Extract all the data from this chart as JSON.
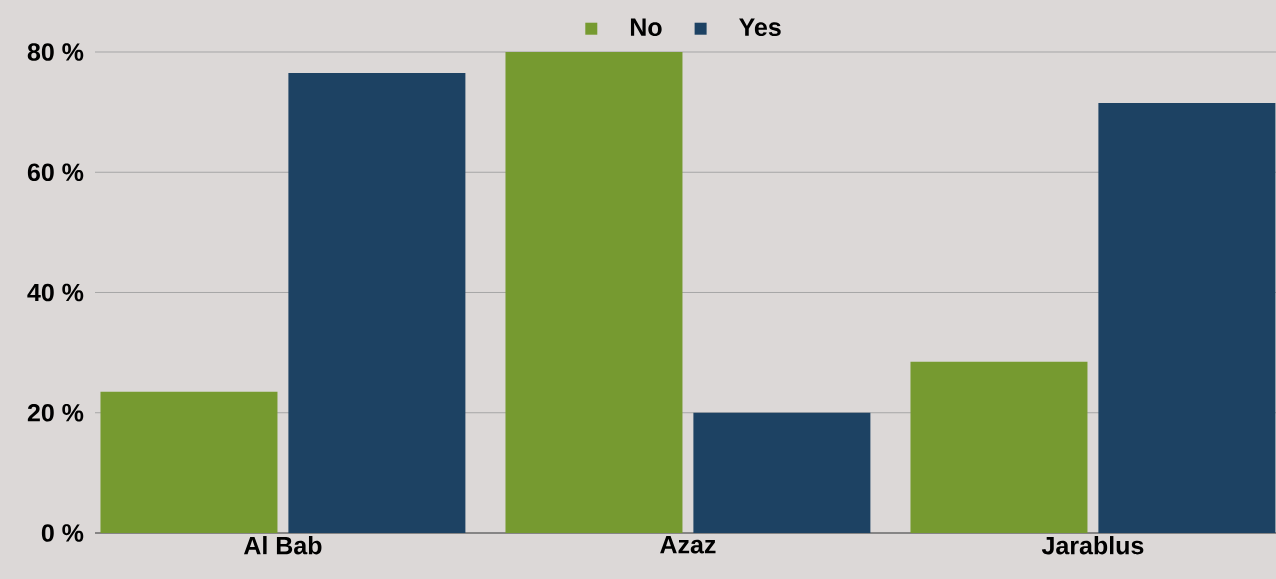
{
  "chart_data": {
    "type": "bar",
    "categories": [
      "Al Bab",
      "Azaz",
      "Jarablus"
    ],
    "series": [
      {
        "name": "No",
        "color": "#769a30",
        "values": [
          23.5,
          80,
          28.5
        ]
      },
      {
        "name": "Yes",
        "color": "#1d4263",
        "values": [
          76.5,
          20,
          71.5
        ]
      }
    ],
    "ylim": [
      0,
      80
    ],
    "yticks": [
      {
        "value": 0,
        "label": "0 %"
      },
      {
        "value": 20,
        "label": "20 %"
      },
      {
        "value": 40,
        "label": "40 %"
      },
      {
        "value": 60,
        "label": "60 %"
      },
      {
        "value": 80,
        "label": "80 %"
      }
    ],
    "grid": "y",
    "legend": "top"
  }
}
